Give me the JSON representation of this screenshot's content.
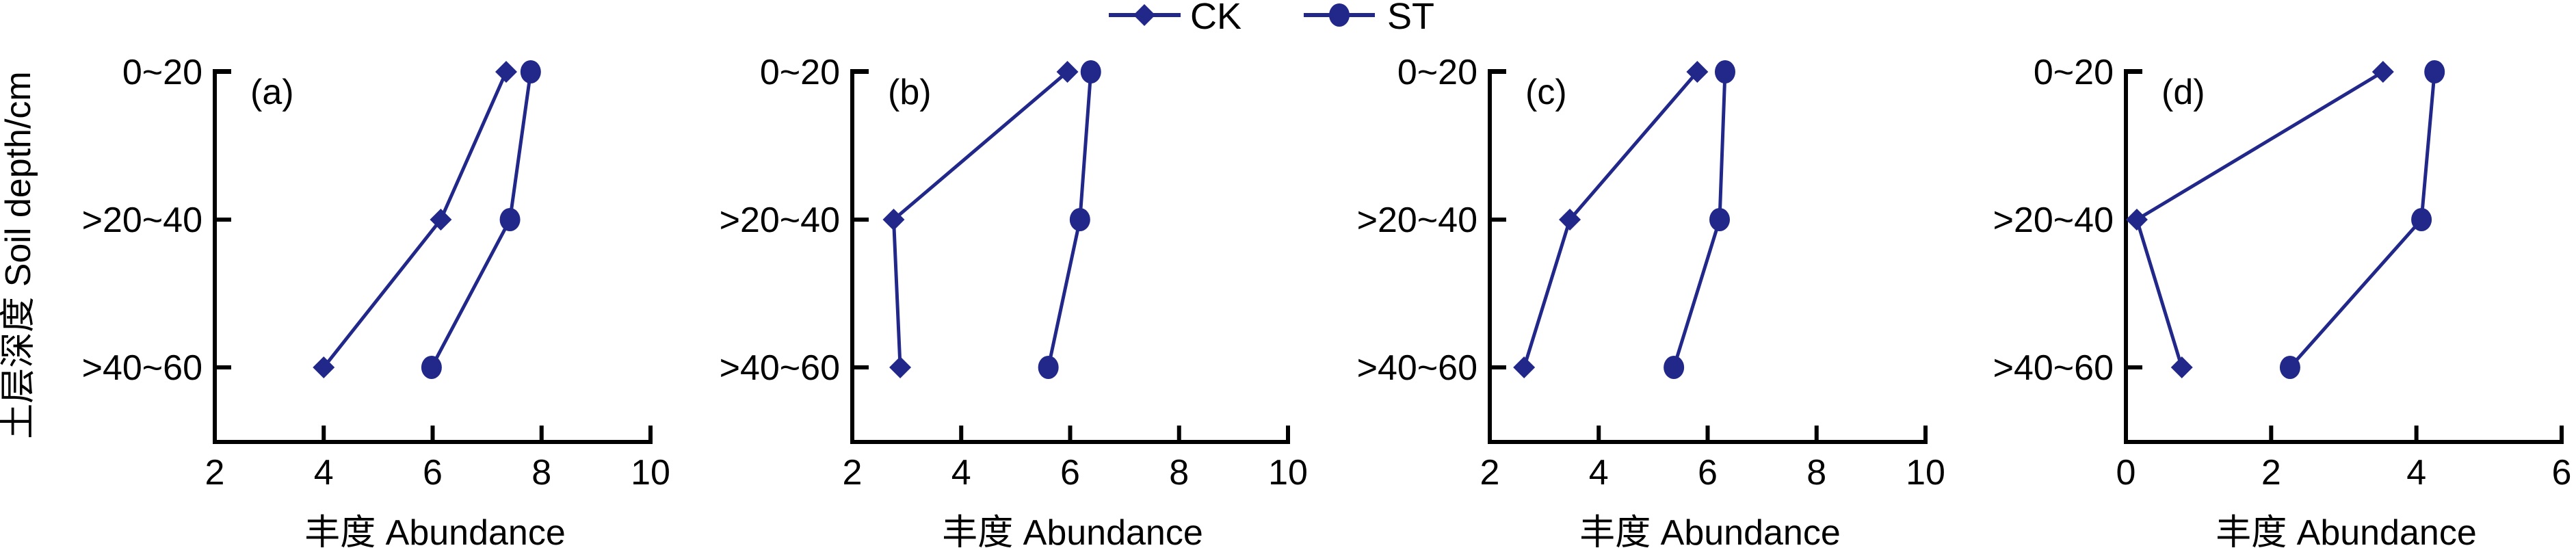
{
  "chart_data": {
    "type": "line",
    "series_colors": {
      "CK": "#21288a",
      "ST": "#21288a"
    },
    "legend": {
      "placement": "top-center",
      "entries": [
        {
          "name": "CK",
          "marker": "diamond"
        },
        {
          "name": "ST",
          "marker": "circle"
        }
      ]
    },
    "ylabel": "土层深度 Soil depth/cm",
    "depth_categories": [
      "0~20",
      ">20~40",
      ">40~60"
    ],
    "panels": [
      {
        "label": "(a)",
        "xlabel": "丰度 Abundance",
        "xlim": [
          2,
          10
        ],
        "xticks": [
          2,
          4,
          6,
          8,
          10
        ],
        "series": [
          {
            "name": "CK",
            "values": [
              7.35,
              6.15,
              4.0
            ]
          },
          {
            "name": "ST",
            "values": [
              7.8,
              7.42,
              5.98
            ]
          }
        ]
      },
      {
        "label": "(b)",
        "xlabel": "丰度 Abundance",
        "xlim": [
          2,
          10
        ],
        "xticks": [
          2,
          4,
          6,
          8,
          10
        ],
        "series": [
          {
            "name": "CK",
            "values": [
              5.95,
              2.76,
              2.88
            ]
          },
          {
            "name": "ST",
            "values": [
              6.38,
              6.18,
              5.6
            ]
          }
        ]
      },
      {
        "label": "(c)",
        "xlabel": "丰度 Abundance",
        "xlim": [
          2,
          10
        ],
        "xticks": [
          2,
          4,
          6,
          8,
          10
        ],
        "series": [
          {
            "name": "CK",
            "values": [
              5.81,
              3.47,
              2.63
            ]
          },
          {
            "name": "ST",
            "values": [
              6.32,
              6.22,
              5.38
            ]
          }
        ]
      },
      {
        "label": "(d)",
        "xlabel": "丰度 Abundance",
        "xlim": [
          0,
          6
        ],
        "xticks": [
          0,
          2,
          4,
          6
        ],
        "series": [
          {
            "name": "CK",
            "values": [
              3.54,
              0.15,
              0.77
            ]
          },
          {
            "name": "ST",
            "values": [
              4.25,
              4.07,
              2.26
            ]
          }
        ]
      }
    ]
  }
}
